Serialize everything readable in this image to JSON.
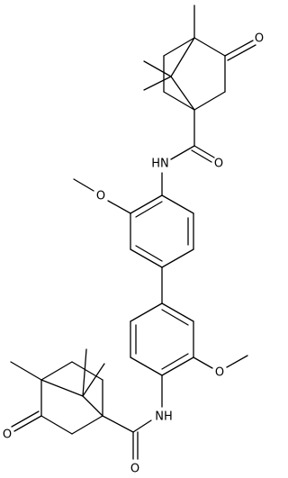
{
  "atoms": [
    {
      "label": "O"
    },
    {
      "label": "HN"
    },
    {
      "label": "O"
    },
    {
      "label": "O"
    },
    {
      "label": "O"
    },
    {
      "label": "NH"
    },
    {
      "label": "O"
    },
    {
      "label": "O"
    }
  ]
}
